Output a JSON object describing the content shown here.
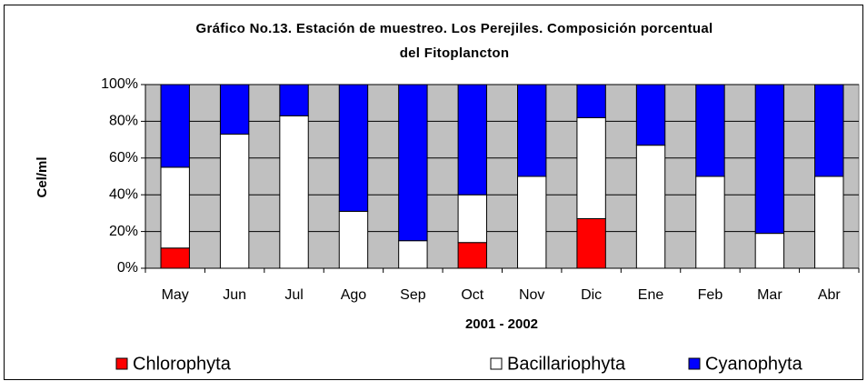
{
  "chart_data": {
    "type": "stacked_bar_100",
    "title": "Gráfico No.13. Estación de muestreo. Los Perejiles. Composición porcentual del Fitoplancton",
    "y_label": "Cel/ml",
    "x_label": "2001 - 2002",
    "categories": [
      "May",
      "Jun",
      "Jul",
      "Ago",
      "Sep",
      "Oct",
      "Nov",
      "Dic",
      "Ene",
      "Feb",
      "Mar",
      "Abr"
    ],
    "series": [
      {
        "name": "Chlorophyta",
        "color": "#ff0000",
        "values": [
          11,
          0,
          0,
          0,
          0,
          14,
          0,
          27,
          0,
          0,
          0,
          0
        ]
      },
      {
        "name": "Bacillariophyta",
        "color": "#ffffff",
        "values": [
          44,
          73,
          83,
          31,
          15,
          26,
          50,
          55,
          67,
          50,
          19,
          50
        ]
      },
      {
        "name": "Cyanophyta",
        "color": "#0000ff",
        "values": [
          45,
          27,
          17,
          69,
          85,
          60,
          50,
          18,
          33,
          50,
          81,
          50
        ]
      }
    ],
    "ylim": [
      0,
      100
    ],
    "yticks": [
      {
        "value": 0,
        "label": "0%"
      },
      {
        "value": 20,
        "label": "20%"
      },
      {
        "value": 40,
        "label": "40%"
      },
      {
        "value": 60,
        "label": "60%"
      },
      {
        "value": 80,
        "label": "80%"
      },
      {
        "value": 100,
        "label": "100%"
      }
    ],
    "grid": true,
    "plot_background": "#c0c0c0",
    "legend": "bottom"
  }
}
